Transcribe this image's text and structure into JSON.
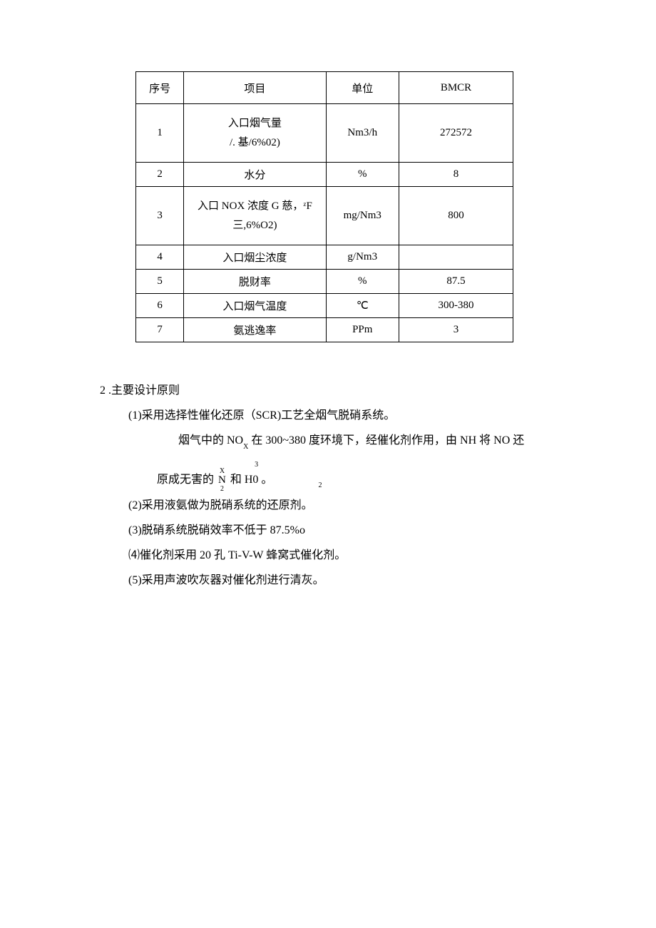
{
  "table": {
    "headers": [
      "序号",
      "项目",
      "单位",
      "BMCR"
    ],
    "rows": [
      {
        "no": "1",
        "item_l1": "入口烟气量",
        "item_l2": "/. 基/6%02)",
        "unit": "Nm3/h",
        "val": "272572",
        "height": "h-tall",
        "multiline": true
      },
      {
        "no": "2",
        "item_l1": "水分",
        "item_l2": "",
        "unit": "%",
        "val": "8",
        "height": "h-med",
        "multiline": false
      },
      {
        "no": "3",
        "item_l1": "入口 NOX 浓度 G 慈，ᶻF",
        "item_l2": "三,6%O2)",
        "unit": "mg/Nm3",
        "val": "800",
        "height": "h-tall",
        "multiline": true
      },
      {
        "no": "4",
        "item_l1": "入口烟尘浓度",
        "item_l2": "",
        "unit": "g/Nm3",
        "val": "",
        "height": "h-sm",
        "multiline": false
      },
      {
        "no": "5",
        "item_l1": "脱财率",
        "item_l2": "",
        "unit": "%",
        "val": "87.5",
        "height": "h-sm",
        "multiline": false,
        "big": true
      },
      {
        "no": "6",
        "item_l1": "入口烟气温度",
        "item_l2": "",
        "unit": "℃",
        "val": "300-380",
        "height": "h-sm",
        "multiline": false
      },
      {
        "no": "7",
        "item_l1": "氨逃逸率",
        "item_l2": "",
        "unit": "PPm",
        "val": "3",
        "height": "h-sm",
        "multiline": false
      }
    ]
  },
  "section": {
    "heading": "2  .主要设计原则",
    "p1": "(1)采用选择性催化还原（SCR)工艺全烟气脱硝系统。",
    "p1a_pre": "烟气中的 NO",
    "p1a_mid": "在 300~380 度环境下，经催化剂作用，由 NH",
    "p1a_post": "将 NO 还",
    "p1b_pre": "原成无害的",
    "p1b_n": "N",
    "p1b_and": "和 H0",
    "p1b_end": "。",
    "p2": "(2)采用液氨做为脱硝系统的还原剂。",
    "p3": "(3)脱硝系统脱硝效率不低于 87.5%o",
    "p4": "⑷催化剂采用 20 孔 Ti-V-W 蜂窝式催化剂。",
    "p5": "(5)采用声波吹灰器对催化剂进行清灰。",
    "sub_x": "X",
    "sub_3": "3",
    "sub_2": "2",
    "sub_2b": "2"
  }
}
